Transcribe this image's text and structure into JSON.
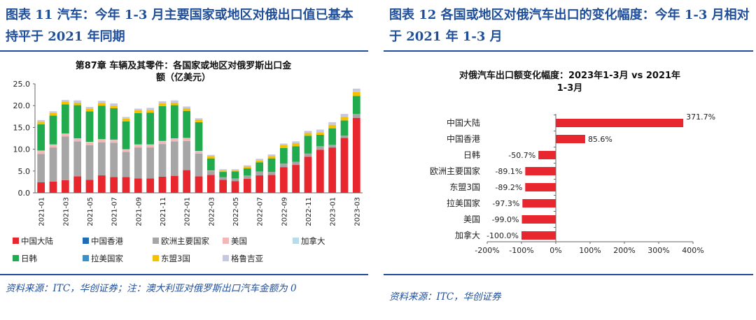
{
  "colors": {
    "title_blue": "#1f4e9a",
    "china_mainland": "#e8262d",
    "hong_kong": "#1f6bb5",
    "eu_major": "#a6a6a6",
    "usa": "#f2b8b8",
    "canada": "#b8dce8",
    "jp_kr": "#22aa4e",
    "latam": "#3a8fc8",
    "asean3": "#f5c000",
    "georgia": "#c5c8e0",
    "right_bar": "#e8262d"
  },
  "left": {
    "figure_title": "图表 11 汽车：今年 1-3 月主要国家或地区对俄出口值已基本持平于 2021 年同期",
    "source": "资料来源：ITC，华创证券；注：澳大利亚对俄罗斯出口汽车金额为 0"
  },
  "right": {
    "figure_title": "图表 12 各国或地区对俄汽车出口的变化幅度：今年 1-3 月相对于 2021 年 1-3 月",
    "source": "资料来源：ITC，华创证券"
  },
  "chart_data": [
    {
      "type": "bar",
      "stacked": true,
      "title": "第87章 车辆及其零件：各国家或地区对俄罗斯出口金额（亿美元）",
      "title_lines": [
        "第87章 车辆及其零件：各国家或地区对俄罗斯出口金",
        "额（亿美元）"
      ],
      "categories": [
        "2021-01",
        "2021-02",
        "2021-03",
        "2021-04",
        "2021-05",
        "2021-06",
        "2021-07",
        "2021-08",
        "2021-09",
        "2021-10",
        "2021-11",
        "2021-12",
        "2022-01",
        "2022-02",
        "2022-03",
        "2022-04",
        "2022-05",
        "2022-06",
        "2022-07",
        "2022-08",
        "2022-09",
        "2022-10",
        "2022-11",
        "2022-12",
        "2023-01",
        "2023-02",
        "2023-03"
      ],
      "x_tick_labels": [
        "2021-01",
        "2021-03",
        "2021-05",
        "2021-07",
        "2021-09",
        "2021-11",
        "2022-01",
        "2022-03",
        "2022-05",
        "2022-07",
        "2022-09",
        "2022-11",
        "2023-01",
        "2023-03"
      ],
      "ylim": [
        0,
        25
      ],
      "yticks": [
        "0.0",
        "5.0",
        "10.0",
        "15.0",
        "20.0",
        "25.0"
      ],
      "grid": false,
      "legend_position": "bottom",
      "legend": [
        "中国大陆",
        "中国香港",
        "欧洲主要国家",
        "美国",
        "加拿大",
        "日韩",
        "拉美国家",
        "东盟3国",
        "格鲁吉亚"
      ],
      "series": [
        {
          "name": "中国大陆",
          "color_key": "china_mainland",
          "values": [
            2.4,
            2.6,
            2.9,
            3.8,
            3.0,
            4.0,
            3.6,
            3.6,
            3.3,
            3.3,
            3.7,
            3.9,
            5.2,
            3.8,
            4.1,
            3.0,
            2.7,
            3.2,
            4.0,
            4.1,
            5.9,
            6.4,
            8.3,
            9.9,
            10.4,
            12.6,
            17.2
          ]
        },
        {
          "name": "中国香港",
          "color_key": "hong_kong",
          "values": [
            0,
            0,
            0,
            0,
            0,
            0,
            0,
            0,
            0,
            0,
            0,
            0,
            0,
            0,
            0,
            0,
            0,
            0,
            0,
            0,
            0,
            0,
            0,
            0,
            0,
            0,
            0
          ]
        },
        {
          "name": "欧洲主要国家",
          "color_key": "eu_major",
          "values": [
            6.5,
            7.8,
            10.0,
            8.0,
            7.9,
            7.6,
            7.9,
            5.8,
            7.1,
            7.1,
            7.5,
            7.9,
            6.7,
            5.2,
            0.9,
            0.6,
            0.6,
            0.8,
            0.9,
            0.7,
            0.8,
            0.7,
            0.7,
            0.8,
            0.6,
            0.5,
            0.9
          ]
        },
        {
          "name": "美国",
          "color_key": "usa",
          "values": [
            0.7,
            0.6,
            0.6,
            0.6,
            0.7,
            0.6,
            0.6,
            0.5,
            0.6,
            0.6,
            0.6,
            0.6,
            0.6,
            0.5,
            0.1,
            0,
            0,
            0,
            0,
            0,
            0,
            0,
            0,
            0,
            0,
            0,
            0
          ]
        },
        {
          "name": "加拿大",
          "color_key": "canada",
          "values": [
            0.1,
            0.1,
            0.1,
            0.1,
            0.1,
            0.1,
            0.1,
            0.1,
            0.1,
            0.1,
            0.1,
            0.1,
            0.1,
            0.1,
            0,
            0,
            0,
            0,
            0,
            0,
            0,
            0,
            0,
            0,
            0,
            0,
            0
          ]
        },
        {
          "name": "日韩",
          "color_key": "jp_kr",
          "values": [
            6.0,
            6.6,
            6.7,
            7.6,
            7.0,
            7.7,
            7.2,
            6.4,
            7.2,
            7.3,
            8.0,
            7.6,
            6.2,
            6.6,
            2.8,
            1.2,
            1.6,
            1.6,
            2.1,
            3.1,
            3.6,
            3.6,
            4.1,
            2.6,
            3.8,
            3.5,
            4.1
          ]
        },
        {
          "name": "拉美国家",
          "color_key": "latam",
          "values": [
            0,
            0,
            0,
            0,
            0,
            0,
            0,
            0,
            0,
            0,
            0,
            0,
            0,
            0,
            0,
            0,
            0,
            0,
            0,
            0,
            0,
            0,
            0,
            0,
            0,
            0,
            0
          ]
        },
        {
          "name": "东盟3国",
          "color_key": "asean3",
          "values": [
            0.6,
            0.6,
            0.6,
            0.6,
            0.6,
            0.6,
            0.6,
            0.6,
            0.6,
            0.6,
            0.6,
            0.6,
            0.6,
            0.6,
            0.5,
            0.3,
            0.2,
            0.4,
            0.4,
            0.5,
            0.6,
            0.7,
            0.6,
            0.6,
            0.8,
            0.8,
            0.9
          ]
        },
        {
          "name": "格鲁吉亚",
          "color_key": "georgia",
          "values": [
            0.4,
            0.4,
            0.4,
            0.5,
            0.4,
            0.5,
            0.5,
            0.4,
            0.4,
            0.5,
            0.5,
            0.5,
            0.4,
            0.3,
            0.3,
            0.3,
            0.3,
            0.3,
            0.4,
            0.4,
            0.4,
            0.4,
            0.5,
            0.6,
            0.6,
            0.7,
            0.8
          ]
        }
      ]
    },
    {
      "type": "bar",
      "orientation": "horizontal",
      "title": "对俄汽车出口额变化幅度：2023年1-3月 vs 2021年1-3月",
      "title_lines": [
        "对俄汽车出口额变化幅度：2023年1-3月 vs 2021年",
        "1-3月"
      ],
      "categories": [
        "中国大陆",
        "中国香港",
        "日韩",
        "欧洲主要国家",
        "东盟3国",
        "拉美国家",
        "美国",
        "加拿大"
      ],
      "values": [
        371.7,
        85.6,
        -50.7,
        -89.1,
        -89.2,
        -97.3,
        -99.0,
        -100.0
      ],
      "value_labels": [
        "371.7%",
        "85.6%",
        "-50.7%",
        "-89.1%",
        "-89.2%",
        "-97.3%",
        "-99.0%",
        "-100.0%"
      ],
      "xlim": [
        -200,
        400
      ],
      "xticks": [
        "-200%",
        "-100%",
        "0%",
        "100%",
        "200%",
        "300%",
        "400%"
      ],
      "unit": "%",
      "grid": false
    }
  ]
}
